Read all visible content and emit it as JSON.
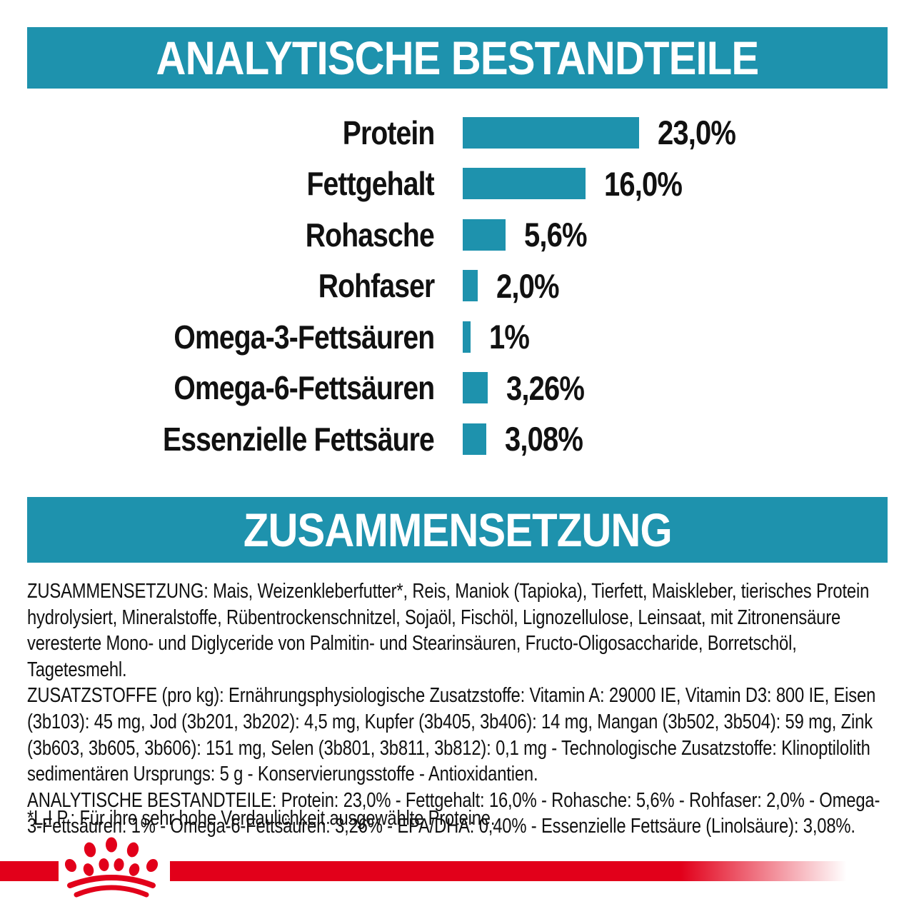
{
  "colors": {
    "teal": "#1E92AD",
    "red": "#E2001A",
    "text": "#111111",
    "background": "#FFFFFF"
  },
  "section1": {
    "title": "ANALYTISCHE BESTANDTEILE"
  },
  "chart_data": {
    "type": "bar",
    "orientation": "horizontal",
    "title": "ANALYTISCHE BESTANDTEILE",
    "categories": [
      "Protein",
      "Fettgehalt",
      "Rohasche",
      "Rohfaser",
      "Omega-3-Fettsäuren",
      "Omega-6-Fettsäuren",
      "Essenzielle Fettsäure"
    ],
    "values": [
      23.0,
      16.0,
      5.6,
      2.0,
      1.0,
      3.26,
      3.08
    ],
    "value_labels": [
      "23,0%",
      "16,0%",
      "5,6%",
      "2,0%",
      "1%",
      "3,26%",
      "3,08%"
    ],
    "unit": "%",
    "xlim": [
      0,
      25
    ],
    "bar_color": "#1E92AD",
    "grid": false,
    "legend": false
  },
  "section2": {
    "title": "ZUSAMMENSETZUNG"
  },
  "body": {
    "paragraphs": [
      "ZUSAMMENSETZUNG: Mais, Weizenkleberfutter*, Reis, Maniok (Tapioka), Tierfett, Maiskleber, tierisches Protein hydrolysiert, Mineralstoffe, Rübentrockenschnitzel, Sojaöl, Fischöl, Lignozellulose, Leinsaat, mit Zitronensäure veresterte Mono- und Diglyceride von Palmitin- und Stearinsäuren, Fructo-Oligosaccharide, Borretschöl, Tagetesmehl.",
      "ZUSATZSTOFFE (pro kg): Ernährungsphysiologische Zusatzstoffe: Vitamin A: 29000 IE, Vitamin D3: 800 IE, Eisen (3b103): 45 mg, Jod (3b201, 3b202): 4,5 mg, Kupfer (3b405, 3b406): 14 mg, Mangan (3b502, 3b504): 59 mg, Zink (3b603, 3b605, 3b606): 151 mg, Selen (3b801, 3b811, 3b812): 0,1 mg - Technologische Zusatzstoffe: Klinoptilolith sedimentären Ursprungs: 5 g - Konservierungsstoffe - Antioxidantien.",
      "ANALYTISCHE BESTANDTEILE: Protein: 23,0% - Fettgehalt: 16,0% - Rohasche: 5,6% - Rohfaser: 2,0% - Omega-3-Fettsäuren: 1% - Omega-6-Fettsäuren: 3,26% - EPA/DHA: 0,40% - Essenzielle Fettsäure (Linolsäure): 3,08%."
    ],
    "footnote": "*L.I.P.: Für ihre sehr hohe Verdaulichkeit ausgewählte Proteine."
  },
  "footer": {
    "logo": "royal-canin-crown"
  }
}
